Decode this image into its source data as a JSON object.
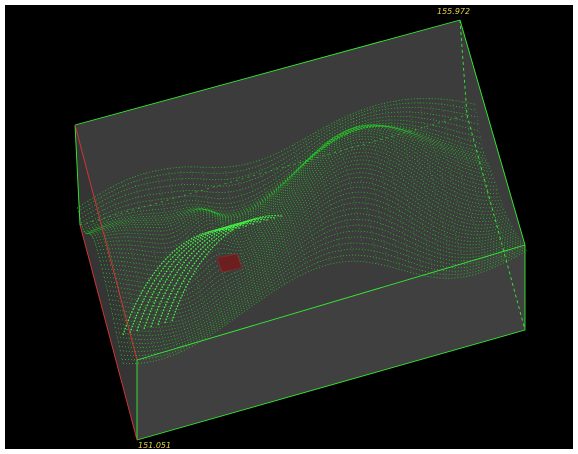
{
  "viewport": {
    "background": "#000000",
    "box_face_color": "#3c3c3c",
    "grid_color": "#22dd22",
    "edge_color": "#33ee33",
    "axis_edge_color": "#dd3333",
    "marker_color": "#6b1f1f"
  },
  "labels": {
    "top_value": "155.972",
    "bottom_value": "151.051"
  }
}
